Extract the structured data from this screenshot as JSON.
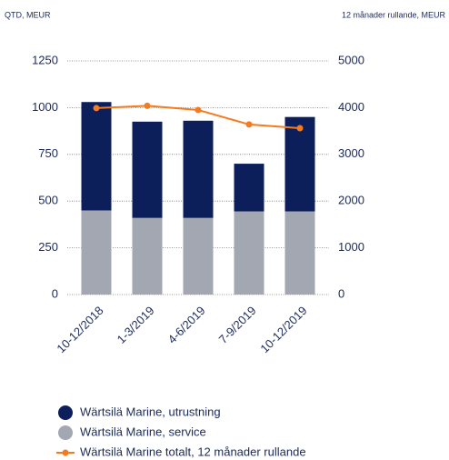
{
  "chart_data": {
    "type": "bar",
    "stacked": true,
    "left_axis_label": "QTD, MEUR",
    "right_axis_label": "12 månader rullande, MEUR",
    "categories": [
      "10-12/2018",
      "1-3/2019",
      "4-6/2019",
      "7-9/2019",
      "10-12/2019"
    ],
    "series": [
      {
        "name": "Wärtsilä Marine, service",
        "color": "#a3a7b1",
        "values": [
          450,
          410,
          410,
          445,
          445
        ]
      },
      {
        "name": "Wärtsilä Marine, utrustning",
        "color": "#0c1f5b",
        "values": [
          580,
          515,
          520,
          255,
          505
        ]
      },
      {
        "name": "Wärtsilä Marine totalt, 12 månader rullande",
        "type": "line",
        "axis": "y2",
        "color": "#f47b20",
        "values": [
          3990,
          4040,
          3950,
          3640,
          3560
        ]
      }
    ],
    "legend_order": [
      1,
      0,
      2
    ],
    "ylim": [
      0,
      1250
    ],
    "yticks": [
      0,
      250,
      500,
      750,
      1000,
      1250
    ],
    "y2lim": [
      0,
      5000
    ],
    "y2ticks": [
      0,
      1000,
      2000,
      3000,
      4000,
      5000
    ],
    "grid": true
  }
}
